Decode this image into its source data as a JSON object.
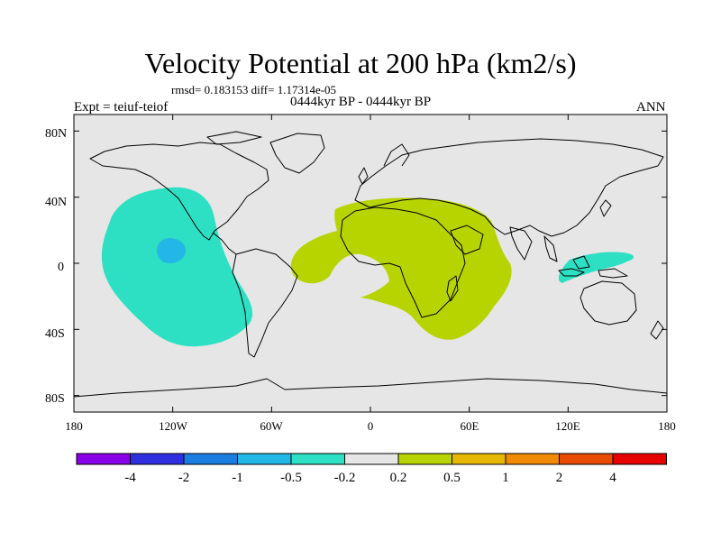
{
  "header": {
    "title": "Velocity Potential at 200 hPa (km2/s)",
    "stats": "rmsd= 0.183153 diff= 1.17314e-05",
    "period": "0444kyr BP - 0444kyr BP",
    "experiment": "Expt = teiuf-teiof",
    "season": "ANN"
  },
  "map": {
    "projection": "cylindrical equidistant",
    "lon_range": [
      -180,
      180
    ],
    "lat_range": [
      -90,
      90
    ],
    "background_color": "#e6e6e6",
    "y_tick_labels": [
      "80N",
      "40N",
      "0",
      "40S",
      "80S"
    ],
    "x_tick_labels": [
      "180",
      "120W",
      "60W",
      "0",
      "60E",
      "120E",
      "180"
    ]
  },
  "colorbar": {
    "labels": [
      "-4",
      "-2",
      "-1",
      "-0.5",
      "-0.2",
      "0.2",
      "0.5",
      "1",
      "2",
      "4"
    ],
    "colors": [
      "#8a00e6",
      "#2f2fe0",
      "#1a7de0",
      "#22b7e6",
      "#2ee0c3",
      "#e6e6e6",
      "#b8d400",
      "#e6b800",
      "#f08a00",
      "#e84a00",
      "#e60000"
    ]
  },
  "anomalies": [
    {
      "name": "East Pacific negative anomaly",
      "range": "-0.5 to -0.2",
      "color": "#2ee0c3"
    },
    {
      "name": "East Pacific core",
      "range": "-1 to -0.5",
      "color": "#22b7e6"
    },
    {
      "name": "Africa / Atlantic positive anomaly",
      "range": "0.2 to 0.5",
      "color": "#b8d400"
    },
    {
      "name": "Maritime continent negative anomaly",
      "range": "-0.5 to -0.2",
      "color": "#2ee0c3"
    }
  ]
}
